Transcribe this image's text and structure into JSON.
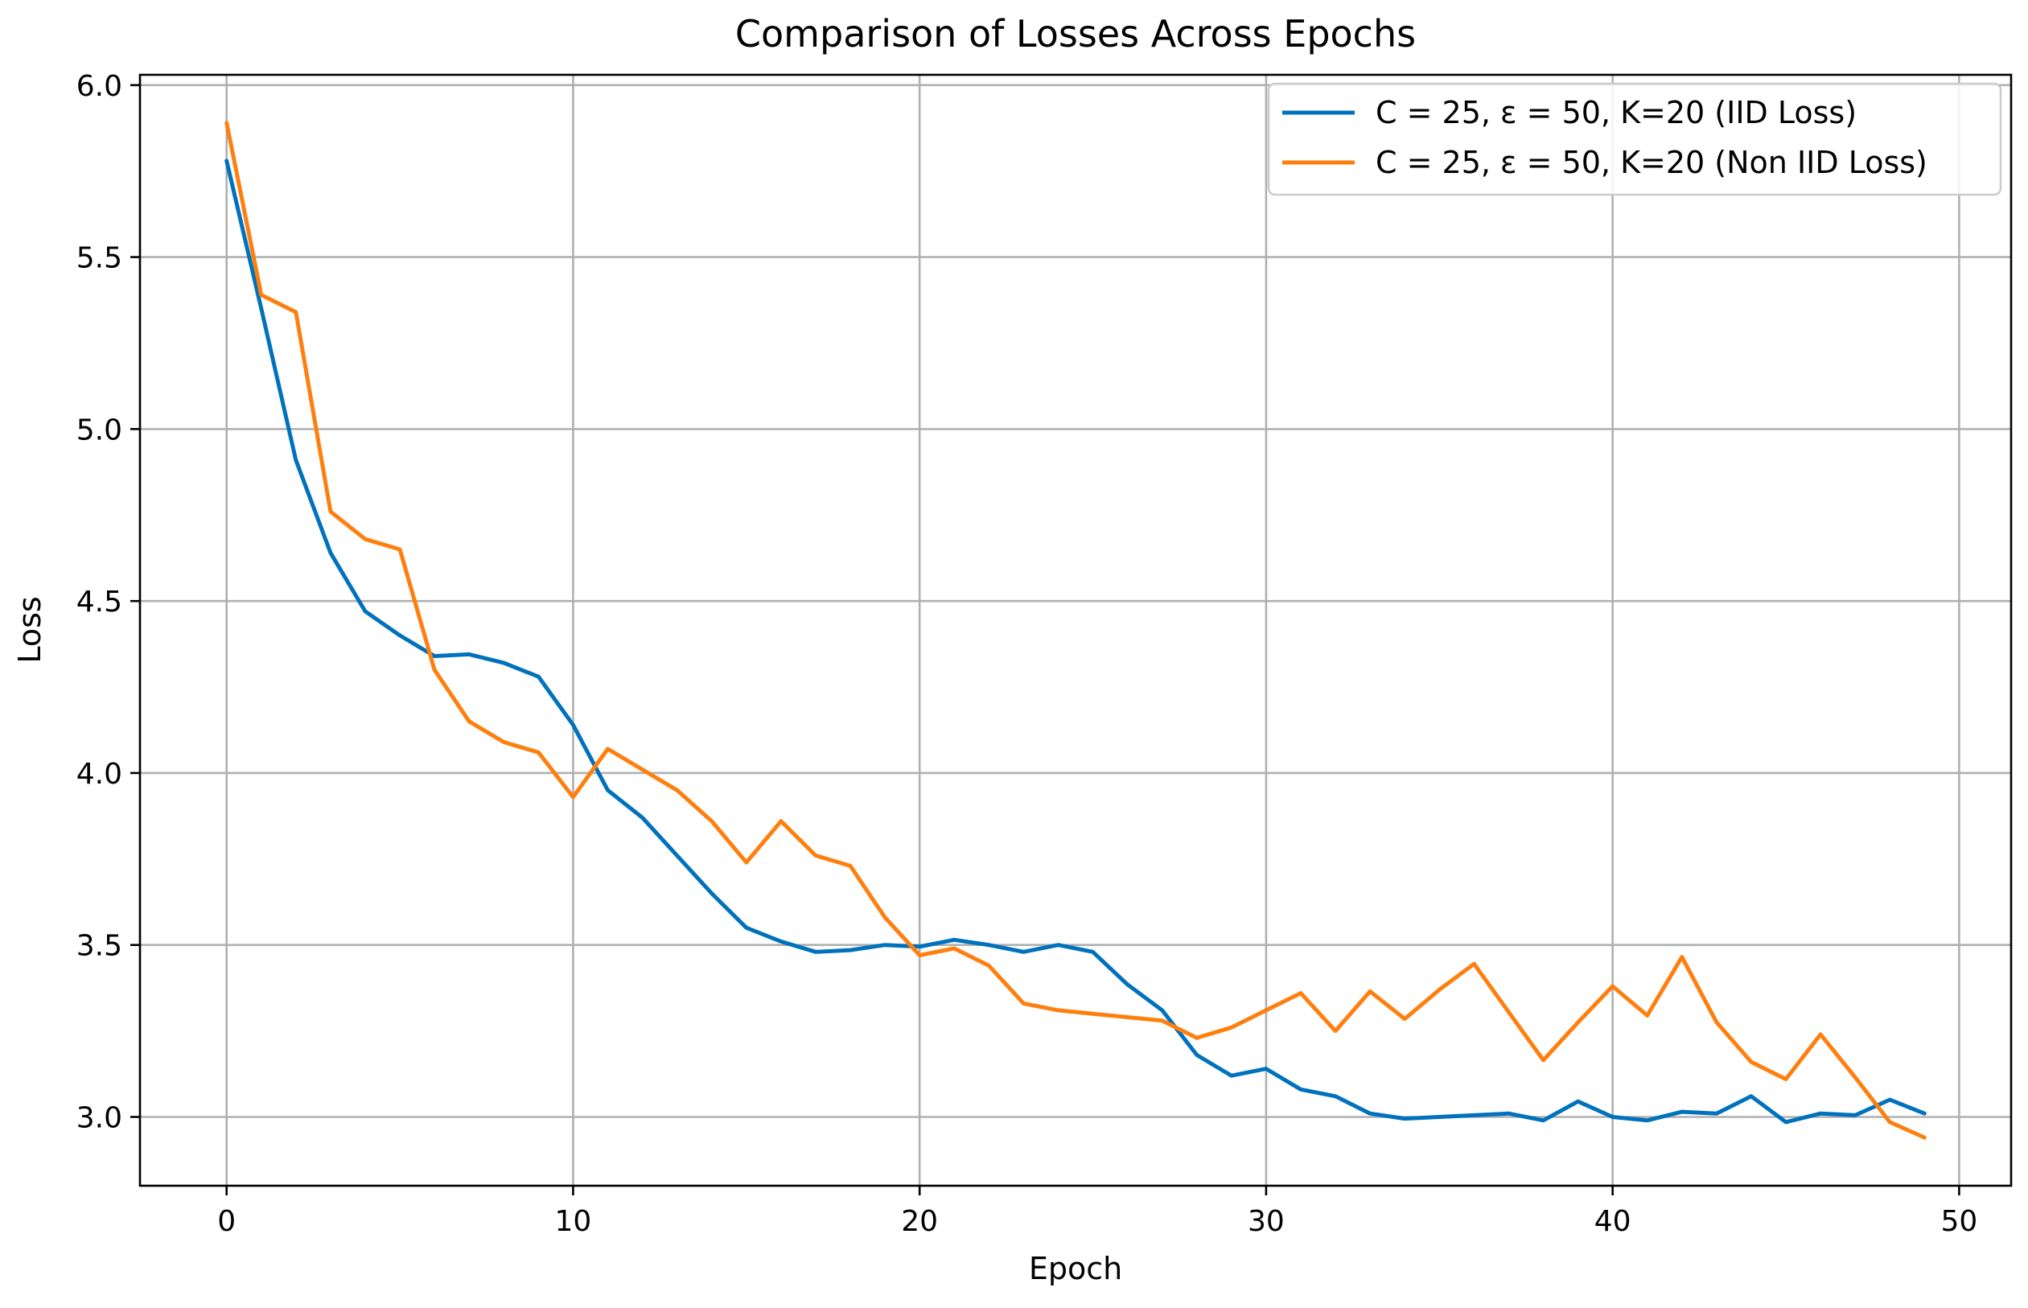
{
  "chart_data": {
    "type": "line",
    "title": "Comparison of Losses Across Epochs",
    "xlabel": "Epoch",
    "ylabel": "Loss",
    "xlim": [
      -2.5,
      51.5
    ],
    "ylim": [
      2.8,
      6.03
    ],
    "xticks": [
      0,
      10,
      20,
      30,
      40,
      50
    ],
    "xtick_labels": [
      "0",
      "10",
      "20",
      "30",
      "40",
      "50"
    ],
    "yticks": [
      3.0,
      3.5,
      4.0,
      4.5,
      5.0,
      5.5,
      6.0
    ],
    "ytick_labels": [
      "3.0",
      "3.5",
      "4.0",
      "4.5",
      "5.0",
      "5.5",
      "6.0"
    ],
    "grid": true,
    "legend_position": "top-right",
    "x": [
      0,
      1,
      2,
      3,
      4,
      5,
      6,
      7,
      8,
      9,
      10,
      11,
      12,
      13,
      14,
      15,
      16,
      17,
      18,
      19,
      20,
      21,
      22,
      23,
      24,
      25,
      26,
      27,
      28,
      29,
      30,
      31,
      32,
      33,
      34,
      35,
      36,
      37,
      38,
      39,
      40,
      41,
      42,
      43,
      44,
      45,
      46,
      47,
      48,
      49
    ],
    "series": [
      {
        "name": "C = 25, ε = 50, K=20 (IID Loss)",
        "color": "#0072BD",
        "values": [
          5.78,
          5.35,
          4.91,
          4.64,
          4.47,
          4.4,
          4.34,
          4.345,
          4.32,
          4.28,
          4.14,
          3.95,
          3.87,
          3.76,
          3.65,
          3.55,
          3.51,
          3.48,
          3.485,
          3.5,
          3.495,
          3.515,
          3.5,
          3.48,
          3.5,
          3.48,
          3.385,
          3.31,
          3.18,
          3.12,
          3.14,
          3.08,
          3.06,
          3.01,
          2.995,
          3.0,
          3.005,
          3.01,
          2.99,
          3.045,
          3.0,
          2.99,
          3.015,
          3.01,
          3.06,
          2.985,
          3.01,
          3.005,
          3.05,
          3.01
        ]
      },
      {
        "name": "C = 25, ε = 50, K=20 (Non IID Loss)",
        "color": "#FF7F0E",
        "values": [
          5.89,
          5.39,
          5.34,
          4.76,
          4.68,
          4.65,
          4.3,
          4.15,
          4.09,
          4.06,
          3.93,
          4.07,
          4.01,
          3.95,
          3.86,
          3.74,
          3.86,
          3.76,
          3.73,
          3.58,
          3.47,
          3.49,
          3.44,
          3.33,
          3.31,
          3.3,
          3.29,
          3.28,
          3.23,
          3.26,
          3.31,
          3.36,
          3.25,
          3.365,
          3.285,
          3.37,
          3.445,
          3.305,
          3.165,
          3.275,
          3.38,
          3.295,
          3.465,
          3.275,
          3.16,
          3.11,
          3.24,
          3.115,
          2.985,
          2.94
        ]
      }
    ]
  }
}
